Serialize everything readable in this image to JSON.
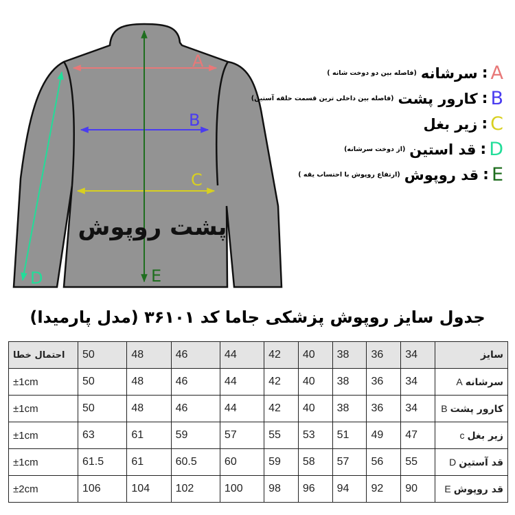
{
  "diagram": {
    "back_label": "پشت روپوش",
    "markers": {
      "A": "A",
      "B": "B",
      "C": "C",
      "D": "D",
      "E": "E"
    },
    "colors": {
      "A": "#e87878",
      "B": "#4a3cf0",
      "C": "#d8d020",
      "D": "#22dd99",
      "E": "#1f6e1f",
      "garment": "#939393"
    }
  },
  "legend": [
    {
      "letter": "A",
      "title": "سرشانه",
      "note": "(فاصله بین دو دوخت شانه )"
    },
    {
      "letter": "B",
      "title": "کارور پشت",
      "note": "(فاصله بین داخلی ترین قسمت حلقه آستین)"
    },
    {
      "letter": "C",
      "title": "زیر بغل",
      "note": ""
    },
    {
      "letter": "D",
      "title": "قد استین",
      "note": "(از دوخت سرشانه)"
    },
    {
      "letter": "E",
      "title": "قد روپوش",
      "note": "(ارتفاع روپوش با احتساب یقه )"
    }
  ],
  "table": {
    "title": "جدول سایز روپوش پزشکی جاما کد ۳۶۱۰۱ (مدل پارمیدا)",
    "header": {
      "label": "سایز",
      "sizes": [
        "34",
        "36",
        "38",
        "40",
        "42",
        "44",
        "46",
        "48",
        "50"
      ],
      "error": "احتمال خطا"
    },
    "rows": [
      {
        "label": "سرشانه",
        "code": "A",
        "values": [
          "34",
          "36",
          "38",
          "40",
          "42",
          "44",
          "46",
          "48",
          "50"
        ],
        "error": "±1cm"
      },
      {
        "label": "کارور پشت",
        "code": "B",
        "values": [
          "34",
          "36",
          "38",
          "40",
          "42",
          "44",
          "46",
          "48",
          "50"
        ],
        "error": "±1cm"
      },
      {
        "label": "زیر بغل",
        "code": "c",
        "values": [
          "47",
          "49",
          "51",
          "53",
          "55",
          "57",
          "59",
          "61",
          "63"
        ],
        "error": "±1cm"
      },
      {
        "label": "قد آستین",
        "code": "D",
        "values": [
          "55",
          "56",
          "57",
          "58",
          "59",
          "60",
          "60.5",
          "61",
          "61.5"
        ],
        "error": "±1cm"
      },
      {
        "label": "قد روپوش",
        "code": "E",
        "values": [
          "90",
          "92",
          "94",
          "96",
          "98",
          "100",
          "102",
          "104",
          "106"
        ],
        "error": "±2cm"
      }
    ]
  }
}
